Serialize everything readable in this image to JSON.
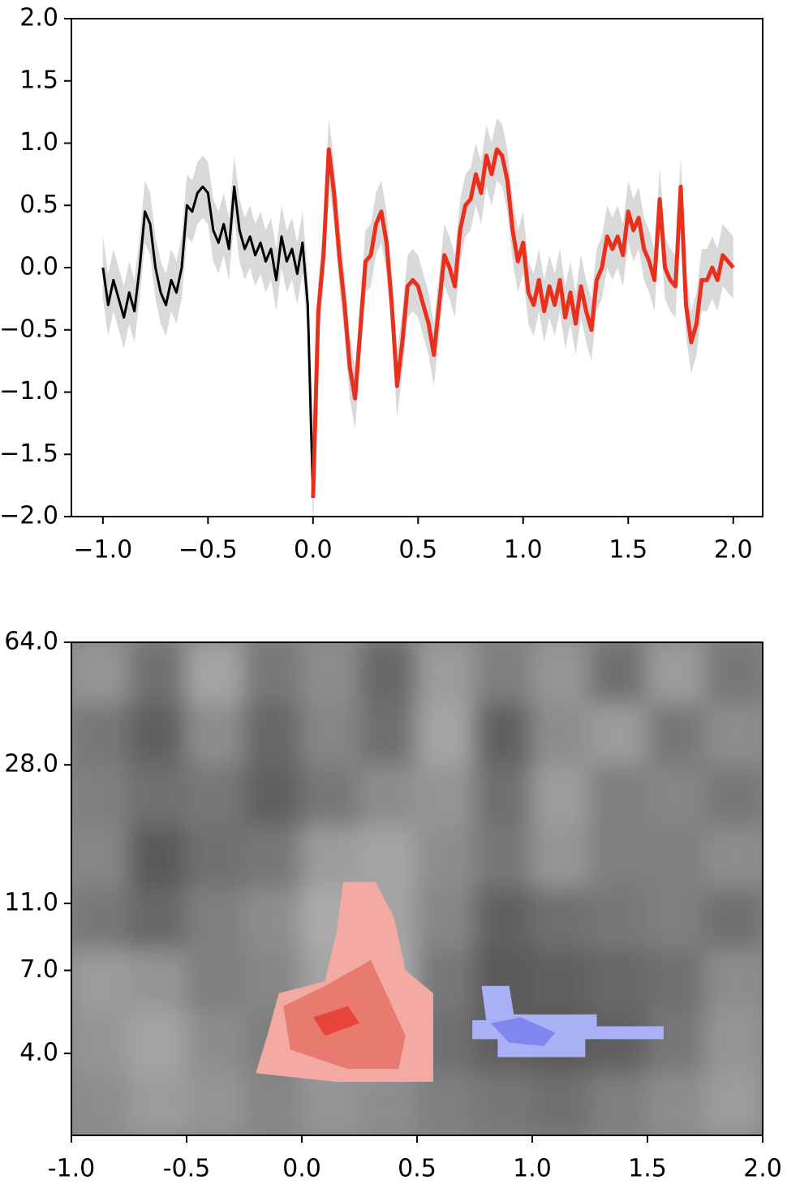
{
  "chart_data": [
    {
      "type": "line",
      "x": [
        -1,
        -0.975,
        -0.95,
        -0.925,
        -0.9,
        -0.875,
        -0.85,
        -0.825,
        -0.8,
        -0.775,
        -0.75,
        -0.725,
        -0.7,
        -0.675,
        -0.65,
        -0.625,
        -0.6,
        -0.575,
        -0.55,
        -0.525,
        -0.5,
        -0.475,
        -0.45,
        -0.425,
        -0.4,
        -0.375,
        -0.35,
        -0.325,
        -0.3,
        -0.275,
        -0.25,
        -0.225,
        -0.2,
        -0.175,
        -0.15,
        -0.125,
        -0.1,
        -0.075,
        -0.05,
        -0.025,
        0,
        0.025,
        0.05,
        0.075,
        0.1,
        0.125,
        0.15,
        0.175,
        0.2,
        0.225,
        0.25,
        0.275,
        0.3,
        0.325,
        0.35,
        0.375,
        0.4,
        0.425,
        0.45,
        0.475,
        0.5,
        0.525,
        0.55,
        0.575,
        0.6,
        0.625,
        0.65,
        0.675,
        0.7,
        0.725,
        0.75,
        0.775,
        0.8,
        0.825,
        0.85,
        0.875,
        0.9,
        0.925,
        0.95,
        0.975,
        1,
        1.025,
        1.05,
        1.075,
        1.1,
        1.125,
        1.15,
        1.175,
        1.2,
        1.225,
        1.25,
        1.275,
        1.3,
        1.325,
        1.35,
        1.375,
        1.4,
        1.425,
        1.45,
        1.475,
        1.5,
        1.525,
        1.55,
        1.575,
        1.6,
        1.625,
        1.65,
        1.675,
        1.7,
        1.725,
        1.75,
        1.775,
        1.8,
        1.825,
        1.85,
        1.875,
        1.9,
        1.925,
        1.95,
        1.975,
        2
      ],
      "series": [
        {
          "color": "#000000",
          "width": 3,
          "values": [
            0,
            -0.3,
            -0.1,
            -0.25,
            -0.4,
            -0.2,
            -0.35,
            0,
            0.45,
            0.35,
            0,
            -0.2,
            -0.3,
            -0.1,
            -0.2,
            0,
            0.5,
            0.45,
            0.6,
            0.65,
            0.6,
            0.3,
            0.2,
            0.35,
            0.15,
            0.65,
            0.3,
            0.15,
            0.25,
            0.1,
            0.2,
            0.05,
            0.15,
            -0.1,
            0.25,
            0.05,
            0.15,
            -0.05,
            0.2,
            -0.3,
            -1.85,
            null,
            null,
            null,
            null,
            null,
            null,
            null,
            null,
            null,
            null,
            null,
            null,
            null,
            null,
            null,
            null,
            null,
            null,
            null,
            null,
            null,
            null,
            null,
            null,
            null,
            null,
            null,
            null,
            null,
            null,
            null,
            null,
            null,
            null,
            null,
            null,
            null,
            null,
            null,
            null,
            null,
            null,
            null,
            null,
            null,
            null,
            null,
            null,
            null,
            null,
            null,
            null,
            null,
            null,
            null,
            null,
            null,
            null,
            null,
            null,
            null,
            null,
            null,
            null,
            null,
            null,
            null,
            null,
            null,
            null,
            null,
            null,
            null,
            null,
            null,
            null,
            null,
            null,
            null,
            null
          ]
        },
        {
          "color": "#e8301c",
          "width": 5,
          "values": [
            null,
            null,
            null,
            null,
            null,
            null,
            null,
            null,
            null,
            null,
            null,
            null,
            null,
            null,
            null,
            null,
            null,
            null,
            null,
            null,
            null,
            null,
            null,
            null,
            null,
            null,
            null,
            null,
            null,
            null,
            null,
            null,
            null,
            null,
            null,
            null,
            null,
            null,
            null,
            null,
            -1.85,
            -0.35,
            0.1,
            0.95,
            0.6,
            0.1,
            -0.3,
            -0.8,
            -1.05,
            -0.5,
            0.05,
            0.1,
            0.35,
            0.45,
            0.2,
            -0.3,
            -0.95,
            -0.6,
            -0.15,
            -0.1,
            -0.15,
            -0.3,
            -0.45,
            -0.7,
            -0.3,
            0.1,
            0,
            -0.15,
            0.3,
            0.5,
            0.55,
            0.75,
            0.6,
            0.9,
            0.75,
            0.95,
            0.9,
            0.7,
            0.3,
            0.05,
            0.2,
            -0.2,
            -0.3,
            -0.1,
            -0.35,
            -0.15,
            -0.3,
            -0.1,
            -0.4,
            -0.2,
            -0.45,
            -0.15,
            -0.35,
            -0.5,
            -0.1,
            0,
            0.25,
            0.15,
            0.25,
            0.1,
            0.45,
            0.3,
            0.4,
            0.15,
            0.05,
            -0.1,
            0.55,
            0,
            -0.1,
            -0.15,
            0.65,
            -0.3,
            -0.6,
            -0.45,
            -0.1,
            -0.1,
            0,
            -0.1,
            0.1,
            0.05,
            0
          ]
        }
      ],
      "error": 0.25,
      "band_color": "#d9d9d9",
      "xlim": [
        -1.15,
        2.14
      ],
      "ylim": [
        -2,
        2
      ],
      "xticks": [
        {
          "value": -1,
          "label": "−1.0"
        },
        {
          "value": -0.5,
          "label": "−0.5"
        },
        {
          "value": 0,
          "label": "0.0"
        },
        {
          "value": 0.5,
          "label": "0.5"
        },
        {
          "value": 1,
          "label": "1.0"
        },
        {
          "value": 1.5,
          "label": "1.5"
        },
        {
          "value": 2,
          "label": "2.0"
        }
      ],
      "yticks": [
        {
          "value": -2,
          "label": "−2.0"
        },
        {
          "value": -1.5,
          "label": "−1.5"
        },
        {
          "value": -1,
          "label": "−1.0"
        },
        {
          "value": -0.5,
          "label": "−0.5"
        },
        {
          "value": 0,
          "label": "0.0"
        },
        {
          "value": 0.5,
          "label": "0.5"
        },
        {
          "value": 1,
          "label": "1.0"
        },
        {
          "value": 1.5,
          "label": "1.5"
        },
        {
          "value": 2,
          "label": "2.0"
        }
      ]
    },
    {
      "type": "contour",
      "xlim": [
        -1,
        2
      ],
      "ylim": [
        2.3,
        64
      ],
      "log_y": true,
      "zlim": [
        -1,
        1
      ],
      "colormap": [
        "#3c3c3c",
        "#d0d0d0"
      ],
      "z": [
        [
          0.2,
          -0.3,
          0.4,
          -0.2,
          0.1,
          -0.4,
          0.3,
          -0.1,
          0.2,
          -0.3,
          0.3,
          -0.2
        ],
        [
          -0.2,
          -0.5,
          0.1,
          -0.4,
          0,
          -0.3,
          0.4,
          -0.5,
          0.1,
          0.3,
          -0.2,
          0.1
        ],
        [
          -0.1,
          -0.3,
          -0.2,
          -0.5,
          -0.2,
          0.1,
          0.2,
          -0.3,
          0.3,
          -0.1,
          0,
          -0.2
        ],
        [
          0,
          -0.6,
          -0.3,
          -0.2,
          0.3,
          0.4,
          0.1,
          -0.2,
          0.2,
          -0.1,
          -0.1,
          0.1
        ],
        [
          -0.2,
          -0.4,
          -0.1,
          0.1,
          0.5,
          0.4,
          0,
          -0.5,
          -0.3,
          -0.2,
          -0.1,
          -0.3
        ],
        [
          0.3,
          0.2,
          -0.1,
          0,
          0.4,
          0.5,
          -0.2,
          -0.6,
          -0.5,
          -0.4,
          -0.3,
          0.1
        ],
        [
          0.2,
          0.4,
          0.1,
          -0.1,
          0.3,
          0.3,
          -0.3,
          -0.5,
          -0.6,
          -0.5,
          -0.2,
          0.2
        ],
        [
          0.1,
          0.3,
          0.2,
          0,
          0.2,
          0.1,
          -0.1,
          -0.2,
          -0.3,
          -0.1,
          0.1,
          0.3
        ]
      ],
      "clusters": [
        {
          "color": "#f2aaa2",
          "x": [
            0.18,
            0.32,
            0.4,
            0.45,
            0.57,
            0.57,
            0.15,
            -0.2,
            -0.15,
            -0.1,
            0.1,
            0.15
          ],
          "y": [
            12.7,
            12.7,
            10,
            7,
            6,
            3.3,
            3.3,
            3.5,
            4.5,
            6,
            6.5,
            9
          ]
        },
        {
          "color": "#e87a70",
          "x": [
            -0.08,
            0.1,
            0.3,
            0.45,
            0.42,
            0.2,
            -0.05
          ],
          "y": [
            5.5,
            6.3,
            7.5,
            4.5,
            3.6,
            3.6,
            4.1
          ]
        },
        {
          "color": "#e8453a",
          "x": [
            0.05,
            0.2,
            0.25,
            0.1
          ],
          "y": [
            5.1,
            5.5,
            4.9,
            4.5
          ]
        },
        {
          "color": "#aab0f5",
          "x": [
            0.78,
            0.9,
            0.92,
            1.28,
            1.28,
            1.57,
            1.57,
            1.23,
            1.23,
            0.85,
            0.85,
            0.74,
            0.74,
            0.8
          ],
          "y": [
            6.3,
            6.3,
            5.2,
            5.2,
            4.8,
            4.8,
            4.4,
            4.4,
            3.9,
            3.9,
            4.4,
            4.4,
            5,
            5
          ]
        },
        {
          "color": "#7f86ee",
          "x": [
            0.82,
            0.95,
            1.1,
            1.05,
            0.9
          ],
          "y": [
            4.9,
            5.1,
            4.6,
            4.2,
            4.3
          ]
        }
      ],
      "xticks": [
        {
          "value": -1,
          "label": "-1.0"
        },
        {
          "value": -0.5,
          "label": "-0.5"
        },
        {
          "value": 0,
          "label": "0.0"
        },
        {
          "value": 0.5,
          "label": "0.5"
        },
        {
          "value": 1,
          "label": "1.0"
        },
        {
          "value": 1.5,
          "label": "1.5"
        },
        {
          "value": 2,
          "label": "2.0"
        }
      ],
      "yticks": [
        {
          "value": 4,
          "label": "4.0"
        },
        {
          "value": 7,
          "label": "7.0"
        },
        {
          "value": 11,
          "label": "11.0"
        },
        {
          "value": 28,
          "label": "28.0"
        },
        {
          "value": 64,
          "label": "64.0"
        }
      ]
    }
  ]
}
